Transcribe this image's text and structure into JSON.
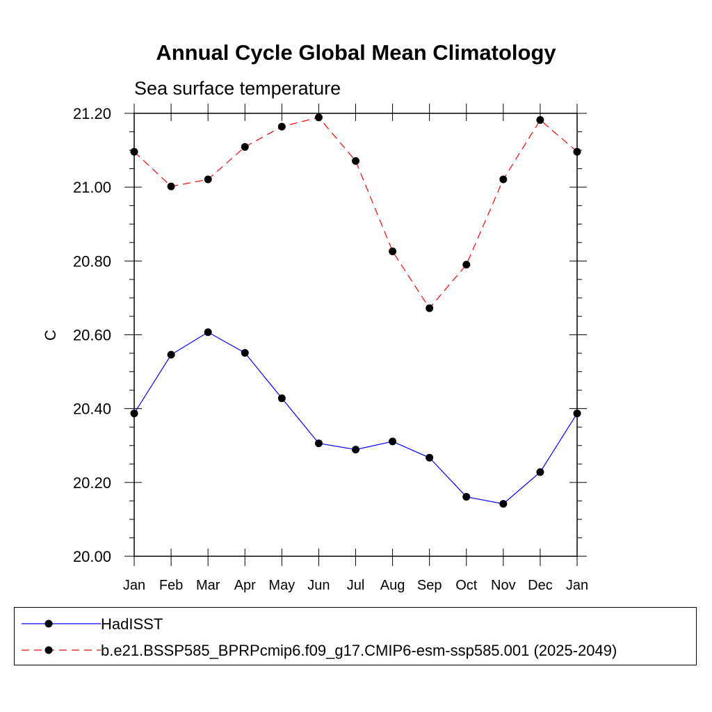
{
  "chart_data": {
    "type": "line",
    "title": "Annual Cycle Global Mean Climatology",
    "subtitle": "Sea surface temperature",
    "xlabel": "",
    "ylabel": "C",
    "categories": [
      "Jan",
      "Feb",
      "Mar",
      "Apr",
      "May",
      "Jun",
      "Jul",
      "Aug",
      "Sep",
      "Oct",
      "Nov",
      "Dec",
      "Jan"
    ],
    "ylim": [
      20.0,
      21.2
    ],
    "yticks": [
      "20.00",
      "20.20",
      "20.40",
      "20.60",
      "20.80",
      "21.00",
      "21.20"
    ],
    "series": [
      {
        "name": "HadISST",
        "color": "#0000ff",
        "dash": "solid",
        "values": [
          20.387,
          20.546,
          20.607,
          20.551,
          20.428,
          20.306,
          20.289,
          20.311,
          20.267,
          20.161,
          20.142,
          20.228,
          20.387
        ]
      },
      {
        "name": "b.e21.BSSP585_BPRPcmip6.f09_g17.CMIP6-esm-ssp585.001 (2025-2049)",
        "color": "#ff0000",
        "dash": "dashed",
        "values": [
          21.096,
          21.002,
          21.021,
          21.109,
          21.164,
          21.189,
          21.071,
          20.826,
          20.672,
          20.79,
          21.021,
          21.182,
          21.096
        ]
      }
    ],
    "legend_position": "bottom"
  }
}
